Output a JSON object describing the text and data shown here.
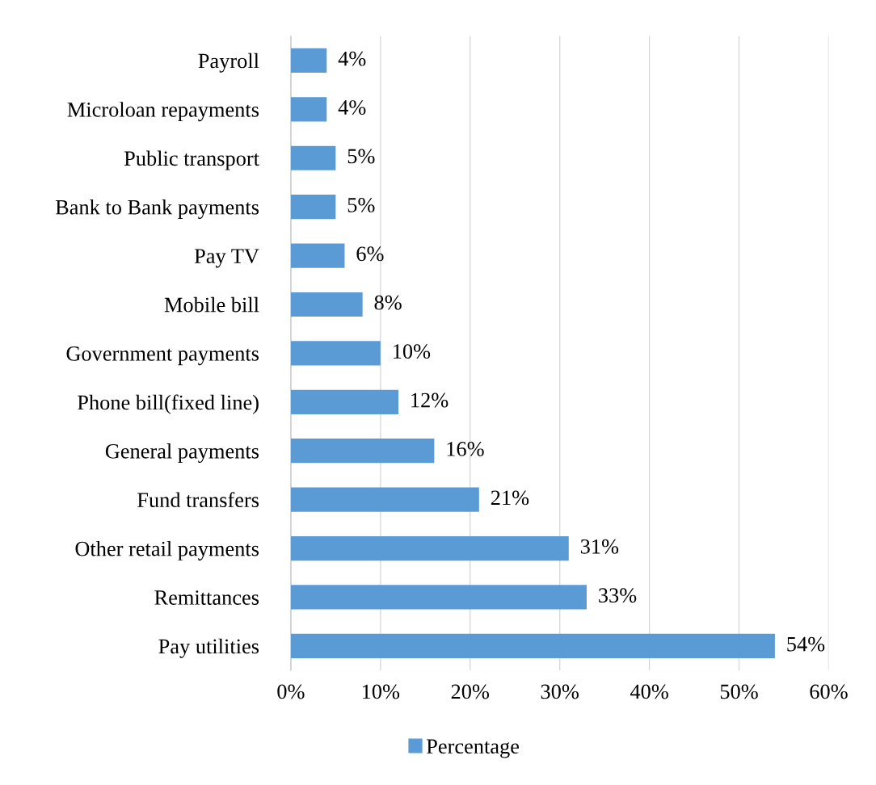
{
  "chart_data": {
    "type": "bar",
    "orientation": "horizontal",
    "categories": [
      "Payroll",
      "Microloan repayments",
      "Public transport",
      "Bank to Bank payments",
      "Pay TV",
      "Mobile bill",
      "Government payments",
      "Phone bill(fixed line)",
      "General payments",
      "Fund transfers",
      "Other retail payments",
      "Remittances",
      "Pay utilities"
    ],
    "series": [
      {
        "name": "Percentage",
        "color": "#5b9bd5",
        "values": [
          4,
          4,
          5,
          5,
          6,
          8,
          10,
          12,
          16,
          21,
          31,
          33,
          54
        ],
        "value_labels": [
          "4%",
          "4%",
          "5%",
          "5%",
          "6%",
          "8%",
          "10%",
          "12%",
          "16%",
          "21%",
          "31%",
          "33%",
          "54%"
        ]
      }
    ],
    "xlim": [
      0,
      60
    ],
    "xticks": [
      {
        "value": 0,
        "label": "0%"
      },
      {
        "value": 10,
        "label": "10%"
      },
      {
        "value": 20,
        "label": "20%"
      },
      {
        "value": 30,
        "label": "30%"
      },
      {
        "value": 40,
        "label": "40%"
      },
      {
        "value": 50,
        "label": "50%"
      },
      {
        "value": 60,
        "label": "60%"
      }
    ],
    "grid": "x",
    "legend": "bottom"
  }
}
